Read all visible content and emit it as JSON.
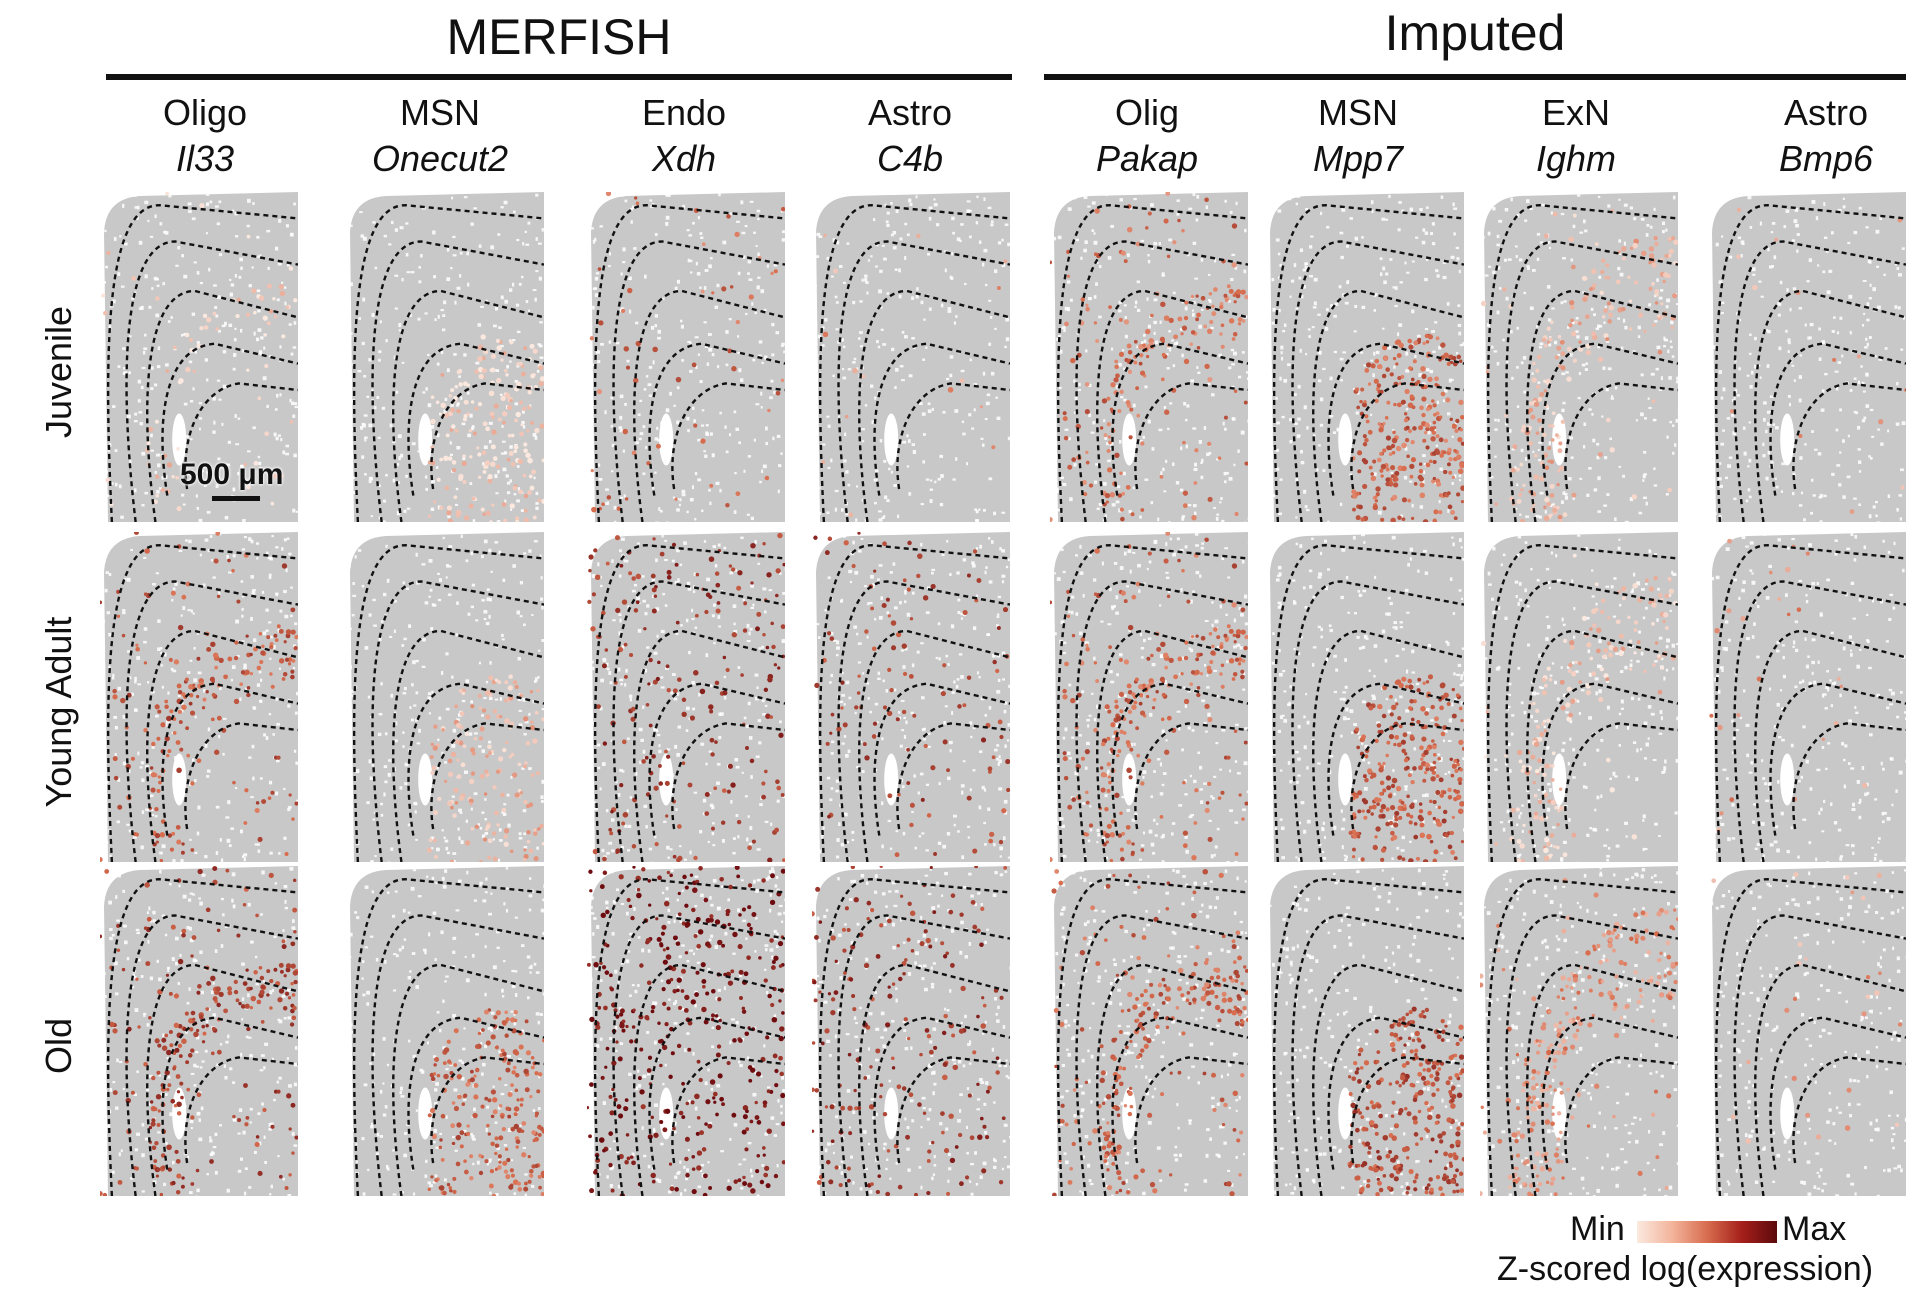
{
  "groups": [
    {
      "title": "MERFISH"
    },
    {
      "title": "Imputed"
    }
  ],
  "columns": [
    {
      "cell_type": "Oligo",
      "gene": "Il33"
    },
    {
      "cell_type": "MSN",
      "gene": "Onecut2"
    },
    {
      "cell_type": "Endo",
      "gene": "Xdh"
    },
    {
      "cell_type": "Astro",
      "gene": "C4b"
    },
    {
      "cell_type": "Olig",
      "gene": "Pakap"
    },
    {
      "cell_type": "MSN",
      "gene": "Mpp7"
    },
    {
      "cell_type": "ExN",
      "gene": "Ighm"
    },
    {
      "cell_type": "Astro",
      "gene": "Bmp6"
    }
  ],
  "rows": [
    {
      "label": "Juvenile"
    },
    {
      "label": "Young Adult"
    },
    {
      "label": "Old"
    }
  ],
  "scale_bar": {
    "label": "500 μm"
  },
  "legend": {
    "min_label": "Min",
    "max_label": "Max",
    "title": "Z-scored log(expression)"
  },
  "colors": {
    "tissue": "#c8c8c8",
    "low": "#fbe9e0",
    "mid": "#d86d4f",
    "high": "#6e0b0f"
  },
  "panels": [
    {
      "region": "cc",
      "intensity": 0.1,
      "density": 0.3
    },
    {
      "region": "str",
      "intensity": 0.1,
      "density": 0.7
    },
    {
      "region": "vessels",
      "intensity": 0.5,
      "density": 0.1
    },
    {
      "region": "scatter",
      "intensity": 0.3,
      "density": 0.06
    },
    {
      "region": "cc",
      "intensity": 0.5,
      "density": 0.8
    },
    {
      "region": "str",
      "intensity": 0.55,
      "density": 1.0
    },
    {
      "region": "ctx",
      "intensity": 0.2,
      "density": 0.7
    },
    {
      "region": "scatter",
      "intensity": 0.3,
      "density": 0.06
    },
    {
      "region": "cc",
      "intensity": 0.6,
      "density": 0.8
    },
    {
      "region": "str",
      "intensity": 0.2,
      "density": 0.5
    },
    {
      "region": "vessels",
      "intensity": 0.75,
      "density": 0.35
    },
    {
      "region": "vessels",
      "intensity": 0.7,
      "density": 0.2
    },
    {
      "region": "cc",
      "intensity": 0.55,
      "density": 1.0
    },
    {
      "region": "str",
      "intensity": 0.6,
      "density": 1.0
    },
    {
      "region": "ctx",
      "intensity": 0.15,
      "density": 0.6
    },
    {
      "region": "scatter",
      "intensity": 0.35,
      "density": 0.1
    },
    {
      "region": "cc",
      "intensity": 0.7,
      "density": 1.0
    },
    {
      "region": "str",
      "intensity": 0.55,
      "density": 0.8
    },
    {
      "region": "vessels",
      "intensity": 0.95,
      "density": 0.7
    },
    {
      "region": "vessels",
      "intensity": 0.75,
      "density": 0.35
    },
    {
      "region": "cc",
      "intensity": 0.55,
      "density": 1.0
    },
    {
      "region": "str",
      "intensity": 0.65,
      "density": 1.0
    },
    {
      "region": "ctx",
      "intensity": 0.35,
      "density": 0.8
    },
    {
      "region": "scatter",
      "intensity": 0.3,
      "density": 0.1
    }
  ]
}
